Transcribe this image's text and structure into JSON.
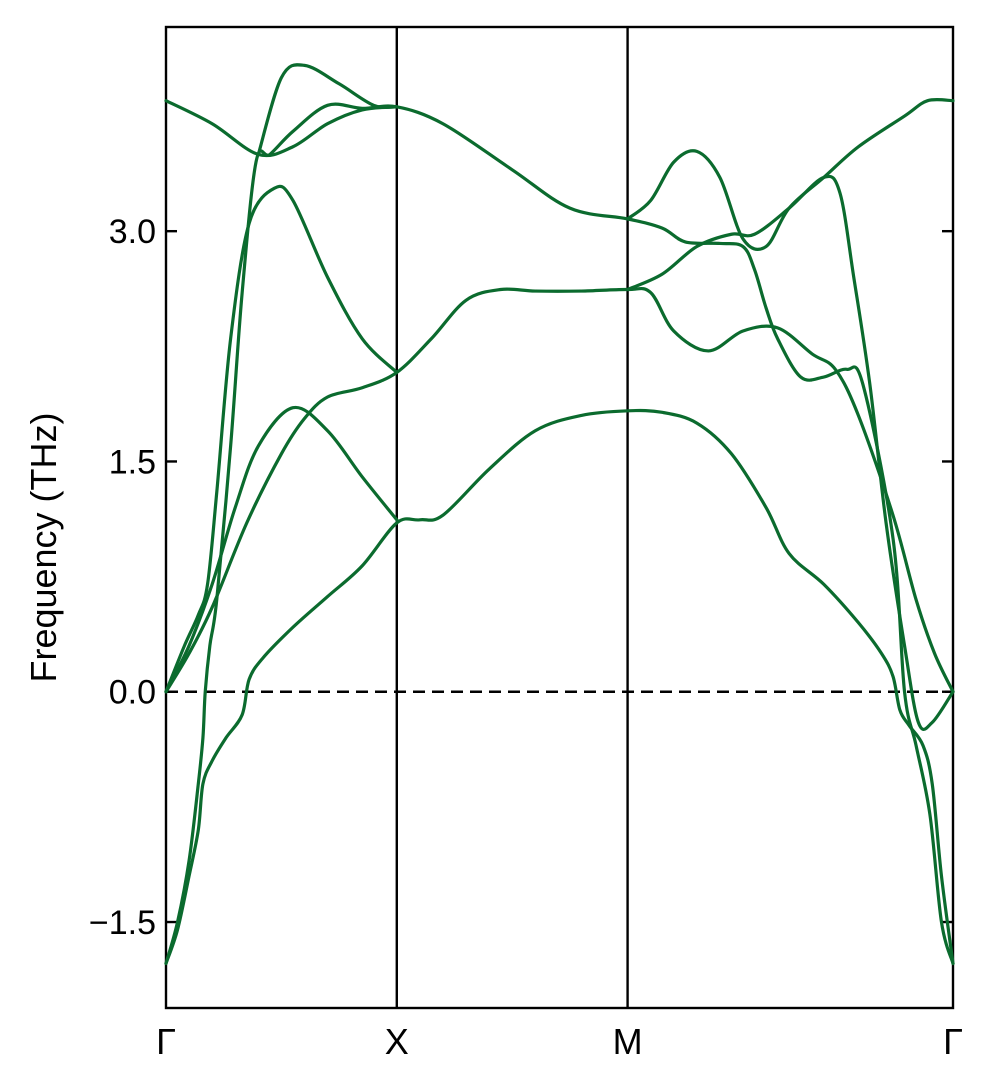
{
  "chart_data": {
    "type": "line",
    "title": "",
    "xlabel": "",
    "ylabel": "Frequency (THz)",
    "ylim": [
      -2.06,
      4.33
    ],
    "yticks": [
      -1.5,
      0.0,
      1.5,
      3.0
    ],
    "ytick_labels": [
      "−1.5",
      "0.0",
      "1.5",
      "3.0"
    ],
    "high_symmetry_points": [
      {
        "label": "Γ",
        "x": 0
      },
      {
        "label": "X",
        "x": 1
      },
      {
        "label": "M",
        "x": 2
      },
      {
        "label": "Γ",
        "x": 3.41
      }
    ],
    "xlim": [
      0,
      3.41
    ],
    "zero_line": {
      "y": 0.0,
      "style": "dashed"
    },
    "line_color": "#0b6b2e",
    "series": [
      {
        "points": [
          [
            0,
            -1.77
          ],
          [
            0.05,
            -1.55
          ],
          [
            0.1,
            -1.2
          ],
          [
            0.14,
            -0.9
          ],
          [
            0.16,
            -0.6
          ],
          [
            0.2,
            -0.45
          ],
          [
            0.26,
            -0.3
          ],
          [
            0.33,
            -0.15
          ],
          [
            0.36,
            0.08
          ],
          [
            0.42,
            0.22
          ],
          [
            0.55,
            0.42
          ],
          [
            0.7,
            0.62
          ],
          [
            0.85,
            0.82
          ],
          [
            1.0,
            1.1
          ],
          [
            1.1,
            1.12
          ],
          [
            1.2,
            1.15
          ],
          [
            1.4,
            1.45
          ],
          [
            1.6,
            1.7
          ],
          [
            1.8,
            1.8
          ],
          [
            2.0,
            1.83
          ],
          [
            2.15,
            1.82
          ],
          [
            2.3,
            1.75
          ],
          [
            2.45,
            1.55
          ],
          [
            2.6,
            1.2
          ],
          [
            2.7,
            0.9
          ],
          [
            2.85,
            0.7
          ],
          [
            3.0,
            0.45
          ],
          [
            3.1,
            0.25
          ],
          [
            3.15,
            0.1
          ],
          [
            3.18,
            -0.12
          ],
          [
            3.22,
            -0.22
          ],
          [
            3.28,
            -0.35
          ],
          [
            3.32,
            -0.6
          ],
          [
            3.36,
            -1.2
          ],
          [
            3.41,
            -1.77
          ]
        ]
      },
      {
        "points": [
          [
            0,
            -1.77
          ],
          [
            0.05,
            -1.5
          ],
          [
            0.1,
            -1.1
          ],
          [
            0.14,
            -0.6
          ],
          [
            0.16,
            -0.3
          ],
          [
            0.17,
            0.0
          ],
          [
            0.19,
            0.3
          ],
          [
            0.22,
            0.6
          ],
          [
            0.28,
            1.6
          ],
          [
            0.33,
            2.6
          ],
          [
            0.39,
            3.45
          ],
          [
            0.45,
            3.5
          ],
          [
            0.55,
            3.65
          ],
          [
            0.7,
            3.82
          ],
          [
            0.85,
            3.8
          ],
          [
            1.0,
            3.81
          ],
          [
            1.2,
            3.7
          ],
          [
            1.5,
            3.4
          ],
          [
            1.75,
            3.15
          ],
          [
            2.0,
            3.08
          ],
          [
            2.15,
            3.02
          ],
          [
            2.25,
            2.93
          ],
          [
            2.4,
            2.92
          ],
          [
            2.5,
            2.9
          ],
          [
            2.55,
            2.75
          ],
          [
            2.6,
            2.5
          ],
          [
            2.65,
            2.3
          ],
          [
            2.75,
            2.05
          ],
          [
            2.85,
            2.05
          ],
          [
            2.95,
            2.1
          ],
          [
            3.02,
            2.0
          ],
          [
            3.15,
            1.0
          ],
          [
            3.2,
            0.0
          ],
          [
            3.25,
            -0.35
          ],
          [
            3.31,
            -0.8
          ],
          [
            3.36,
            -1.5
          ],
          [
            3.41,
            -1.77
          ]
        ]
      },
      {
        "points": [
          [
            0,
            0
          ],
          [
            0.1,
            0.3
          ],
          [
            0.2,
            0.7
          ],
          [
            0.3,
            1.2
          ],
          [
            0.4,
            1.6
          ],
          [
            0.55,
            1.85
          ],
          [
            0.7,
            1.7
          ],
          [
            0.85,
            1.4
          ],
          [
            1.0,
            1.12
          ]
        ]
      },
      {
        "points": [
          [
            0,
            0
          ],
          [
            0.1,
            0.25
          ],
          [
            0.2,
            0.55
          ],
          [
            0.35,
            1.1
          ],
          [
            0.5,
            1.55
          ],
          [
            0.6,
            1.78
          ],
          [
            0.7,
            1.92
          ],
          [
            0.85,
            1.98
          ],
          [
            1.0,
            2.08
          ],
          [
            1.15,
            2.3
          ],
          [
            1.3,
            2.55
          ],
          [
            1.45,
            2.62
          ],
          [
            1.6,
            2.61
          ],
          [
            1.8,
            2.61
          ],
          [
            2.0,
            2.62
          ],
          [
            2.1,
            2.6
          ],
          [
            2.2,
            2.35
          ],
          [
            2.35,
            2.22
          ],
          [
            2.5,
            2.35
          ],
          [
            2.65,
            2.37
          ],
          [
            2.8,
            2.2
          ],
          [
            2.9,
            2.1
          ],
          [
            3.0,
            1.8
          ],
          [
            3.15,
            1.15
          ],
          [
            3.25,
            0.6
          ],
          [
            3.33,
            0.25
          ],
          [
            3.41,
            0.0
          ]
        ]
      },
      {
        "points": [
          [
            0,
            0
          ],
          [
            0.08,
            0.3
          ],
          [
            0.14,
            0.5
          ],
          [
            0.18,
            0.7
          ],
          [
            0.22,
            1.3
          ],
          [
            0.28,
            2.3
          ],
          [
            0.36,
            3.05
          ],
          [
            0.47,
            3.28
          ],
          [
            0.55,
            3.2
          ],
          [
            0.7,
            2.7
          ],
          [
            0.85,
            2.3
          ],
          [
            1.0,
            2.08
          ]
        ]
      },
      {
        "points": [
          [
            0,
            3.85
          ],
          [
            0.2,
            3.7
          ],
          [
            0.4,
            3.5
          ],
          [
            0.55,
            3.55
          ],
          [
            0.7,
            3.7
          ],
          [
            0.85,
            3.79
          ],
          [
            1.0,
            3.81
          ]
        ]
      },
      {
        "points": [
          [
            0.4,
            3.5
          ],
          [
            0.5,
            4.0
          ],
          [
            0.6,
            4.08
          ],
          [
            0.75,
            3.96
          ],
          [
            0.9,
            3.82
          ],
          [
            1.0,
            3.81
          ]
        ]
      },
      {
        "points": [
          [
            2.0,
            3.08
          ],
          [
            2.1,
            3.2
          ],
          [
            2.2,
            3.45
          ],
          [
            2.3,
            3.52
          ],
          [
            2.4,
            3.35
          ],
          [
            2.5,
            2.95
          ],
          [
            2.6,
            2.9
          ],
          [
            2.7,
            3.15
          ],
          [
            2.85,
            3.35
          ],
          [
            3.0,
            3.55
          ],
          [
            3.2,
            3.75
          ],
          [
            3.3,
            3.85
          ],
          [
            3.41,
            3.85
          ]
        ]
      },
      {
        "points": [
          [
            2.0,
            2.62
          ],
          [
            2.15,
            2.72
          ],
          [
            2.3,
            2.9
          ],
          [
            2.45,
            2.98
          ],
          [
            2.55,
            2.98
          ],
          [
            2.7,
            3.15
          ],
          [
            2.85,
            3.35
          ],
          [
            2.92,
            3.25
          ],
          [
            2.98,
            2.7
          ],
          [
            3.05,
            2.0
          ],
          [
            3.12,
            1.1
          ],
          [
            3.2,
            0.3
          ],
          [
            3.26,
            -0.2
          ],
          [
            3.32,
            -0.2
          ],
          [
            3.41,
            0.0
          ]
        ]
      }
    ]
  }
}
